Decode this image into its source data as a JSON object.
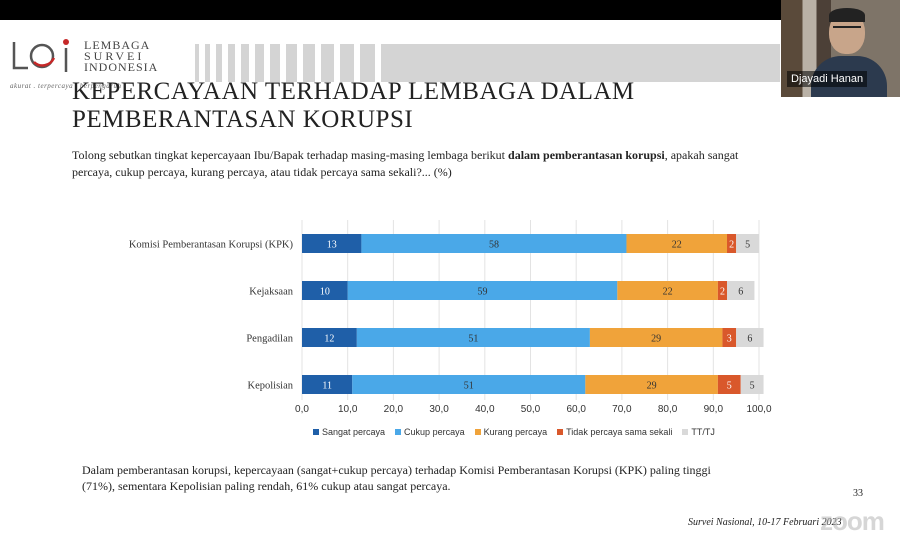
{
  "participant": {
    "name": "Djayadi Hanan"
  },
  "logo": {
    "line1": "LEMBAGA",
    "line2": "SURVEI",
    "line3": "INDONESIA",
    "tagline": "akurat . terpercaya . berpengaruh"
  },
  "slide": {
    "title": "KEPERCAYAAN TERHADAP LEMBAGA DALAM PEMBERANTASAN KORUPSI",
    "question_pre": "Tolong sebutkan tingkat kepercayaan Ibu/Bapak terhadap masing-masing lembaga berikut ",
    "question_bold": "dalam pemberantasan korupsi",
    "question_post": ", apakah sangat percaya, cukup percaya, kurang percaya, atau tidak percaya sama sekali?... (%)",
    "summary": "Dalam pemberantasan korupsi, kepercayaan (sangat+cukup percaya) terhadap Komisi Pemberantasan Korupsi (KPK) paling tinggi (71%), sementara Kepolisian paling rendah, 61% cukup atau sangat percaya.",
    "page_number": "33",
    "footer": "Survei Nasional, 10-17 Februari 2023",
    "watermark": "zoom"
  },
  "chart_data": {
    "type": "bar",
    "orientation": "horizontal-stacked",
    "categories": [
      "Komisi Pemberantasan Korupsi (KPK)",
      "Kejaksaan",
      "Pengadilan",
      "Kepolisian"
    ],
    "series": [
      {
        "name": "Sangat percaya",
        "color": "#1f5fa8",
        "values": [
          13,
          10,
          12,
          11
        ]
      },
      {
        "name": "Cukup percaya",
        "color": "#4aa8e8",
        "values": [
          58,
          59,
          51,
          51
        ]
      },
      {
        "name": "Kurang percaya",
        "color": "#f0a33a",
        "values": [
          22,
          22,
          29,
          29
        ]
      },
      {
        "name": "Tidak percaya sama sekali",
        "color": "#d9582b",
        "values": [
          2,
          2,
          3,
          5
        ]
      },
      {
        "name": "TT/TJ",
        "color": "#d9d9d9",
        "values": [
          5,
          6,
          6,
          5
        ]
      }
    ],
    "xlim": [
      0,
      100
    ],
    "xticks": [
      "0,0",
      "10,0",
      "20,0",
      "30,0",
      "40,0",
      "50,0",
      "60,0",
      "70,0",
      "80,0",
      "90,0",
      "100,0"
    ],
    "grid": true,
    "legend_position": "bottom"
  }
}
